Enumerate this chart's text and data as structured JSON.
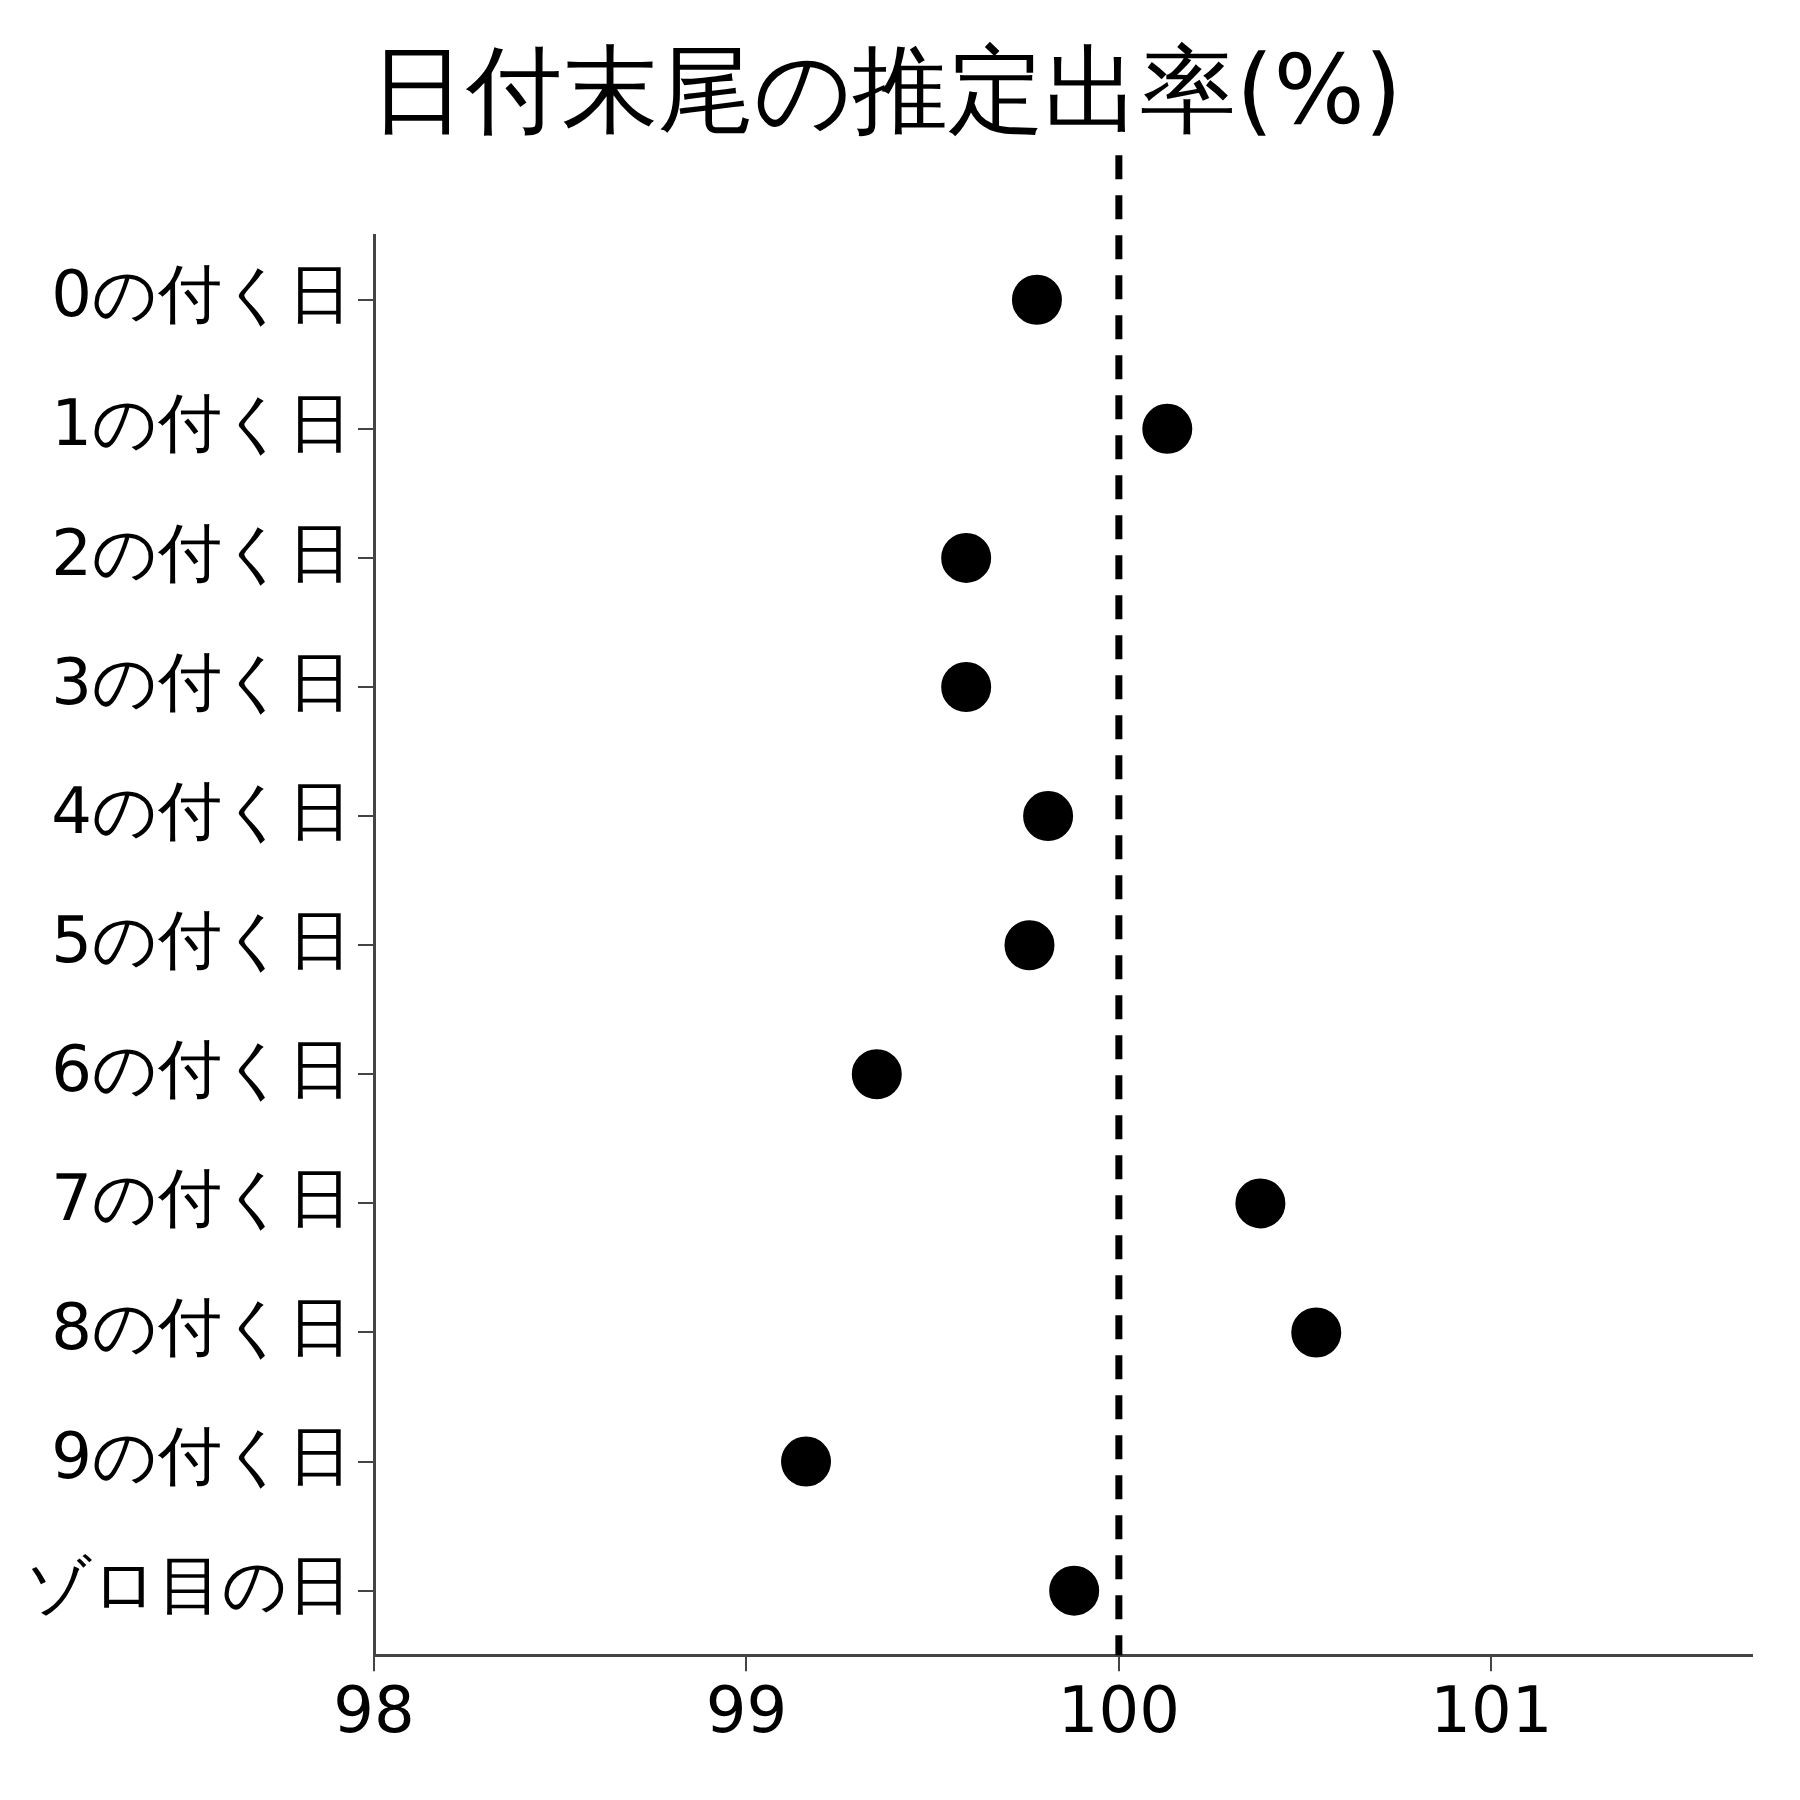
{
  "chart_data": {
    "type": "scatter",
    "orientation": "horizontal",
    "title": "日付末尾の推定出率(%)",
    "categories": [
      "0の付く日",
      "1の付く日",
      "2の付く日",
      "3の付く日",
      "4の付く日",
      "5の付く日",
      "6の付く日",
      "7の付く日",
      "8の付く日",
      "9の付く日",
      "ゾロ目の日"
    ],
    "series": [
      {
        "color": "#000000",
        "values": [
          99.78,
          100.13,
          99.59,
          99.59,
          99.81,
          99.76,
          99.35,
          100.38,
          100.53,
          99.16,
          99.88
        ]
      }
    ],
    "xlim": [
      98,
      101.7
    ],
    "xticks": [
      98,
      99,
      100,
      101
    ],
    "ref_lines": [
      {
        "axis": "x",
        "value": 100,
        "color": "#000000",
        "line_style": "dashed"
      }
    ],
    "marker": "circle",
    "grid": false,
    "legend": false
  }
}
